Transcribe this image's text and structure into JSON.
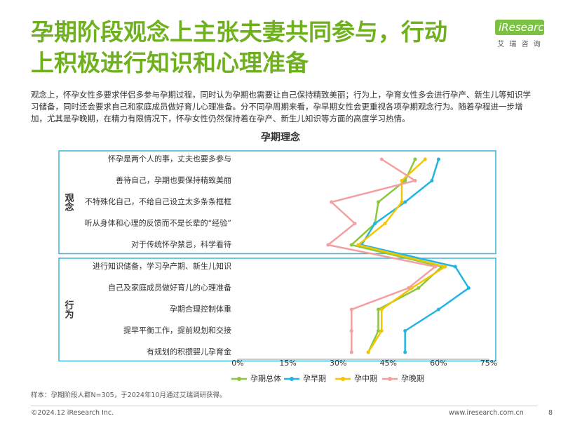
{
  "header": {
    "title_lines": [
      "孕期阶段观念上主张夫妻共同参与，行动",
      "上积极进行知识和心理准备"
    ],
    "logo": {
      "name": "iResearch",
      "tagline": "艾 瑞 咨 询"
    },
    "description": "观念上，怀孕女性多要求伴侣多参与孕期过程，同时认为孕期也需要让自己保持精致美丽；行为上，孕育女性多会进行孕产、新生儿等知识学习储备，同时还会要求自己和家庭成员做好育儿心理准备。分不同孕周期来看，孕早期女性会更重视各项孕期观念行为。随着孕程进一步增加，尤其是孕晚期，在精力有限情况下，怀孕女性仍然保持着在孕产、新生儿知识等方面的高度学习热情。"
  },
  "chart_data": {
    "type": "line",
    "orientation": "horizontal",
    "title": "孕期理念",
    "groups": [
      {
        "name": "观念",
        "categories": [
          "怀孕是两个人的事，丈夫也要多参与",
          "善待自己，孕期也要保持精致美丽",
          "不特殊化自己，不给自己设立太多条条框框",
          "听从身体和心理的反馈而不是长辈的“经验”",
          "对于传统怀孕禁忌，科学看待"
        ]
      },
      {
        "name": "行为",
        "categories": [
          "进行知识储备，学习孕产期、新生儿知识",
          "自己及家庭成员做好育儿的心理准备",
          "孕期合理控制体重",
          "提早平衡工作，提前规划和交接",
          "有规划的积攒婴儿孕育金"
        ]
      }
    ],
    "series": [
      {
        "name": "孕期总体",
        "color": "#8cc63f",
        "values": [
          53,
          50,
          42,
          41,
          34,
          61,
          54,
          42,
          42,
          39
        ]
      },
      {
        "name": "孕早期",
        "color": "#22b5e2",
        "values": [
          60,
          58,
          50,
          41,
          37,
          65,
          69,
          60,
          50,
          50
        ]
      },
      {
        "name": "孕中期",
        "color": "#f5c500",
        "values": [
          56,
          49,
          49,
          44,
          36,
          62,
          52,
          43,
          43,
          39
        ]
      },
      {
        "name": "孕晚期",
        "color": "#f2a0a2",
        "values": [
          43,
          53,
          28,
          35,
          27,
          59,
          51,
          34,
          34,
          34
        ]
      }
    ],
    "xlim": [
      0,
      75
    ],
    "xticks": [
      {
        "value": 0,
        "label": "0%"
      },
      {
        "value": 15,
        "label": "15%"
      },
      {
        "value": 30,
        "label": "30%"
      },
      {
        "value": 45,
        "label": "45%"
      },
      {
        "value": 60,
        "label": "60%"
      },
      {
        "value": 75,
        "label": "75%"
      }
    ],
    "legend": "bottom"
  },
  "footer": {
    "note": "样本：孕期阶段人群N=305，于2024年10月通过艾瑞调研获得。",
    "copyright": "©2024.12 iResearch Inc.",
    "website": "www.iresearch.com.cn",
    "page": "8"
  }
}
